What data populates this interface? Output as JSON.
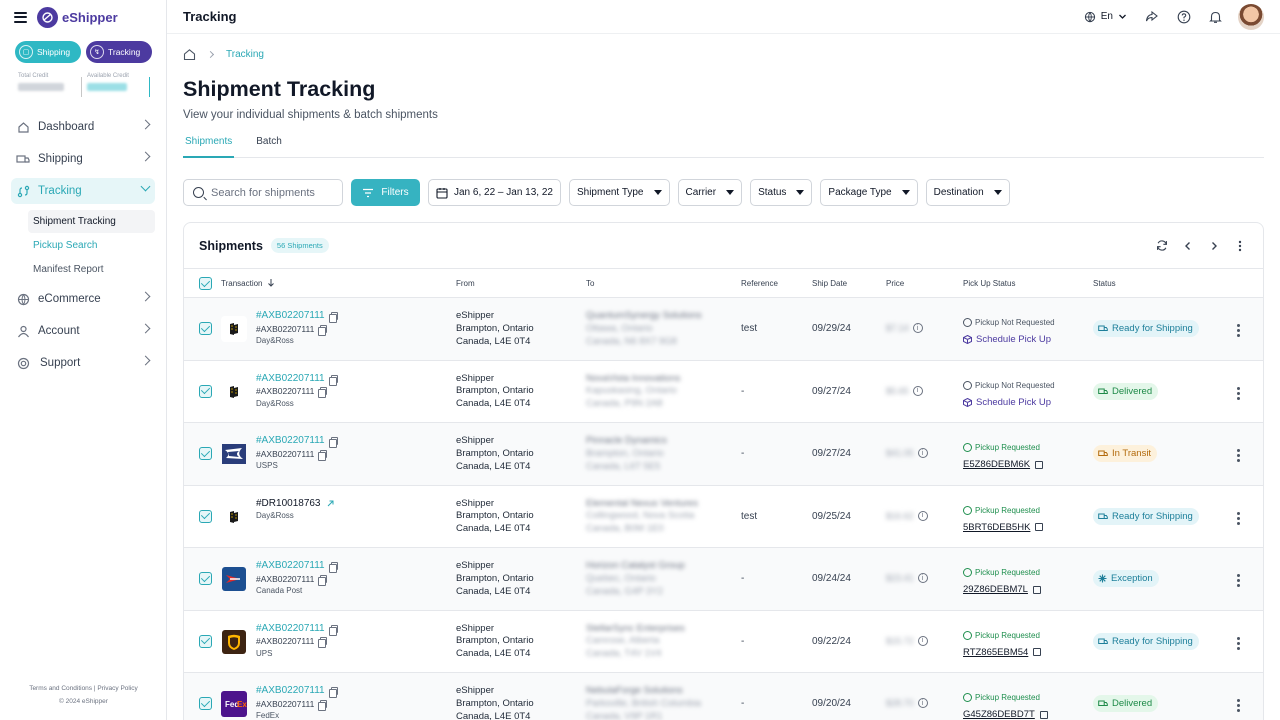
{
  "app": {
    "name": "eShipper",
    "page_title": "Tracking"
  },
  "sidebar": {
    "modes": [
      {
        "label": "Shipping"
      },
      {
        "label": "Tracking"
      }
    ],
    "credit": {
      "total_label": "Total Credit",
      "available_label": "Available Credit"
    },
    "nav": [
      {
        "label": "Dashboard"
      },
      {
        "label": "Shipping"
      },
      {
        "label": "Tracking"
      },
      {
        "label": "eCommerce"
      },
      {
        "label": "Account"
      },
      {
        "label": "Support"
      }
    ],
    "tracking_sub": [
      {
        "label": "Shipment Tracking"
      },
      {
        "label": "Pickup Search"
      },
      {
        "label": "Manifest Report"
      }
    ],
    "footer_links": "Terms and Conditions | Privacy Policy",
    "copyright": "© 2024 eShipper"
  },
  "topbar": {
    "language": "En"
  },
  "breadcrumb": {
    "current": "Tracking"
  },
  "header": {
    "title": "Shipment Tracking",
    "subtitle": "View your individual shipments & batch shipments"
  },
  "tabs": [
    {
      "label": "Shipments"
    },
    {
      "label": "Batch"
    }
  ],
  "filters": {
    "search_placeholder": "Search for shipments",
    "filters_label": "Filters",
    "date_range": "Jan 6, 22 – Jan 13, 22",
    "dropdowns": [
      "Shipment Type",
      "Carrier",
      "Status",
      "Package Type",
      "Destination"
    ]
  },
  "table": {
    "title": "Shipments",
    "count_badge": "56 Shipments",
    "columns": {
      "transaction": "Transaction",
      "from": "From",
      "to": "To",
      "reference": "Reference",
      "ship_date": "Ship Date",
      "price": "Price",
      "pickup_status": "Pick Up Status",
      "status": "Status"
    },
    "rows": [
      {
        "tracking": "#AXB02207111",
        "ref_id": "#AXB02207111",
        "carrier": "Day&Ross",
        "from": [
          "eShipper",
          "Brampton, Ontario",
          "Canada, L4E 0T4"
        ],
        "to": [
          "QuantumSynergy Solutions",
          "Ottawa, Ontario",
          "Canada, N6 8X7 9G8"
        ],
        "reference": "test",
        "ship_date": "09/29/24",
        "price": "$7.14",
        "pickup_status": "Pickup Not Requested",
        "pickup_action": "Schedule Pick Up",
        "status": "Ready for Shipping"
      },
      {
        "tracking": "#AXB02207111",
        "ref_id": "#AXB02207111",
        "carrier": "Day&Ross",
        "from": [
          "eShipper",
          "Brampton, Ontario",
          "Canada, L4E 0T4"
        ],
        "to": [
          "NovaVista Innovations",
          "Kapuskasing, Ontario",
          "Canada, P9N 2A8"
        ],
        "reference": "-",
        "ship_date": "09/27/24",
        "price": "$5.65",
        "pickup_status": "Pickup Not Requested",
        "pickup_action": "Schedule Pick Up",
        "status": "Delivered"
      },
      {
        "tracking": "#AXB02207111",
        "ref_id": "#AXB02207111",
        "carrier": "USPS",
        "from": [
          "eShipper",
          "Brampton, Ontario",
          "Canada, L4E 0T4"
        ],
        "to": [
          "Pinnacle Dynamics",
          "Brampton, Ontario",
          "Canada, L6T 5E5"
        ],
        "reference": "-",
        "ship_date": "09/27/24",
        "price": "$41.05",
        "pickup_status": "Pickup Requested",
        "pickup_action": "E5Z86DEBM6K",
        "status": "In Transit"
      },
      {
        "tracking": "#DR10018763",
        "ref_id": "",
        "carrier": "Day&Ross",
        "from": [
          "eShipper",
          "Brampton, Ontario",
          "Canada, L4E 0T4"
        ],
        "to": [
          "Elemental Nexus Ventures",
          "Collingwood, Nova Scotia",
          "Canada, B0M 1E0"
        ],
        "reference": "test",
        "ship_date": "09/25/24",
        "price": "$16.62",
        "pickup_status": "Pickup Requested",
        "pickup_action": "5BRT6DEB5HK",
        "status": "Ready for Shipping"
      },
      {
        "tracking": "#AXB02207111",
        "ref_id": "#AXB02207111",
        "carrier": "Canada Post",
        "from": [
          "eShipper",
          "Brampton, Ontario",
          "Canada, L4E 0T4"
        ],
        "to": [
          "Horizon Catalyst Group",
          "Quebec, Ontario",
          "Canada, G4P 3Y2"
        ],
        "reference": "-",
        "ship_date": "09/24/24",
        "price": "$23.41",
        "pickup_status": "Pickup Requested",
        "pickup_action": "29Z86DEBM7L",
        "status": "Exception"
      },
      {
        "tracking": "#AXB02207111",
        "ref_id": "#AXB02207111",
        "carrier": "UPS",
        "from": [
          "eShipper",
          "Brampton, Ontario",
          "Canada, L4E 0T4"
        ],
        "to": [
          "StellarSync Enterprises",
          "Camrose, Alberta",
          "Canada, T4V 1V4"
        ],
        "reference": "-",
        "ship_date": "09/22/24",
        "price": "$15.72",
        "pickup_status": "Pickup Requested",
        "pickup_action": "RTZ865EBM54",
        "status": "Ready for Shipping"
      },
      {
        "tracking": "#AXB02207111",
        "ref_id": "#AXB02207111",
        "carrier": "FedEx",
        "from": [
          "eShipper",
          "Brampton, Ontario",
          "Canada, L4E 0T4"
        ],
        "to": [
          "NebulaForge Solutions",
          "Parksville, British Columbia",
          "Canada, V9P 1R1"
        ],
        "reference": "-",
        "ship_date": "09/20/24",
        "price": "$28.70",
        "pickup_status": "Pickup Requested",
        "pickup_action": "G45Z86DEBD7T",
        "status": "Delivered"
      }
    ]
  },
  "colors": {
    "primary": "#36b3c1",
    "brand_purple": "#4c3aa0"
  }
}
